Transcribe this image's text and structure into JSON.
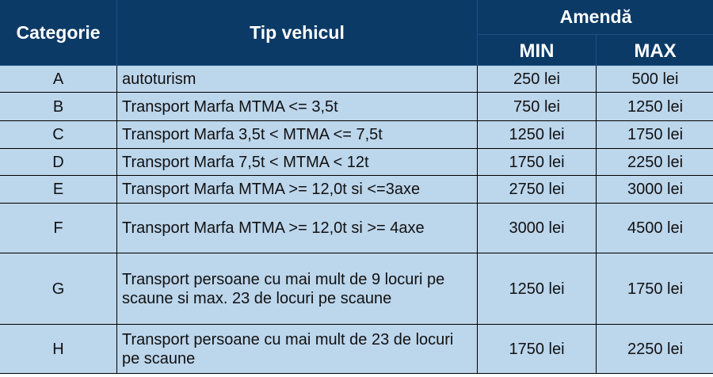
{
  "header": {
    "categorie": "Categorie",
    "tip_vehicul": "Tip vehicul",
    "amenda": "Amendă",
    "min": "MIN",
    "max": "MAX"
  },
  "rows": [
    {
      "categorie": "A",
      "tip": "autoturism",
      "min": "250 lei",
      "max": "500 lei"
    },
    {
      "categorie": "B",
      "tip": "Transport Marfa MTMA <= 3,5t",
      "min": "750 lei",
      "max": "1250 lei"
    },
    {
      "categorie": "C",
      "tip": "Transport Marfa 3,5t < MTMA <= 7,5t",
      "min": "1250 lei",
      "max": "1750 lei"
    },
    {
      "categorie": "D",
      "tip": "Transport Marfa 7,5t < MTMA < 12t",
      "min": "1750 lei",
      "max": "2250 lei"
    },
    {
      "categorie": "E",
      "tip": "Transport Marfa MTMA >= 12,0t si <=3axe",
      "min": "2750 lei",
      "max": "3000 lei"
    },
    {
      "categorie": "F",
      "tip": "Transport Marfa MTMA >= 12,0t si >= 4axe",
      "min": "3000 lei",
      "max": "4500 lei"
    },
    {
      "categorie": "G",
      "tip": "Transport persoane cu mai mult de 9 locuri pe scaune si max. 23 de locuri pe scaune",
      "min": "1250 lei",
      "max": "1750 lei"
    },
    {
      "categorie": "H",
      "tip": "Transport persoane cu mai mult de 23 de locuri pe scaune",
      "min": "1750 lei",
      "max": "2250 lei"
    }
  ],
  "colors": {
    "header_bg": "#0b3a66",
    "header_text": "#ffffff",
    "row_bg": "#bcd6ec"
  }
}
